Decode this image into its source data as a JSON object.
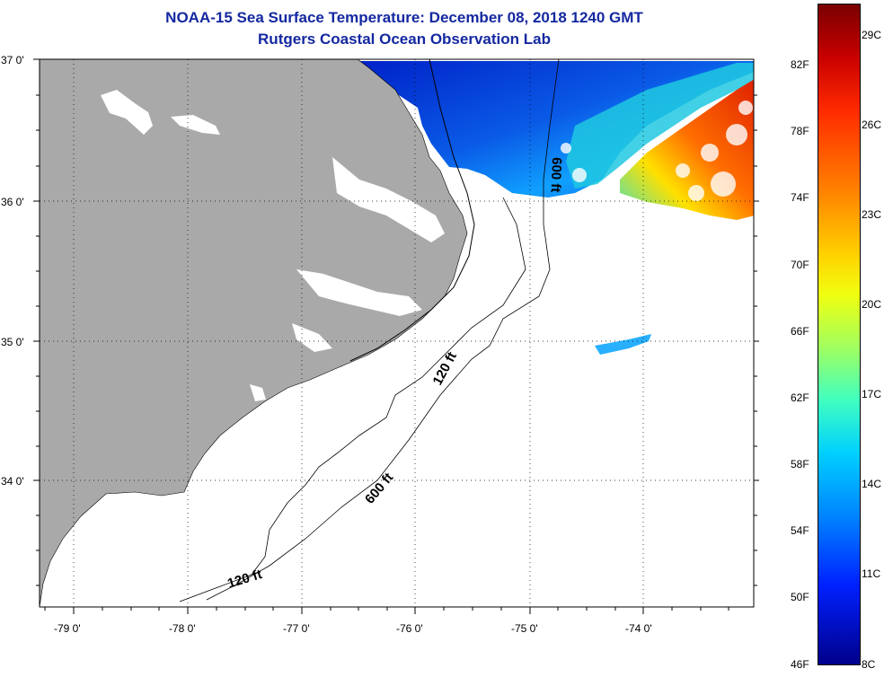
{
  "header": {
    "title": "NOAA-15 Sea Surface Temperature:  December 08, 2018 1240 GMT",
    "subtitle": "Rutgers Coastal Ocean Observation Lab"
  },
  "axes": {
    "lat_labels": [
      "37 0'",
      "36 0'",
      "35 0'",
      "34 0'"
    ],
    "lon_labels": [
      "-79 0'",
      "-78 0'",
      "-77 0'",
      "-76 0'",
      "-75 0'",
      "-74 0'"
    ]
  },
  "contours": {
    "label_120_a": "120 ft",
    "label_120_b": "120 ft",
    "label_600_a": "600 ft",
    "label_600_b": "600 ft"
  },
  "colorbar": {
    "fahrenheit": [
      "82F",
      "78F",
      "74F",
      "70F",
      "66F",
      "62F",
      "58F",
      "54F",
      "50F",
      "46F"
    ],
    "celsius": [
      "29C",
      "26C",
      "23C",
      "20C",
      "17C",
      "14C",
      "11C",
      "8C"
    ]
  },
  "colors": {
    "land": "#a9a9a9",
    "ocean_nodata": "#ffffff",
    "title": "#1428a0"
  }
}
